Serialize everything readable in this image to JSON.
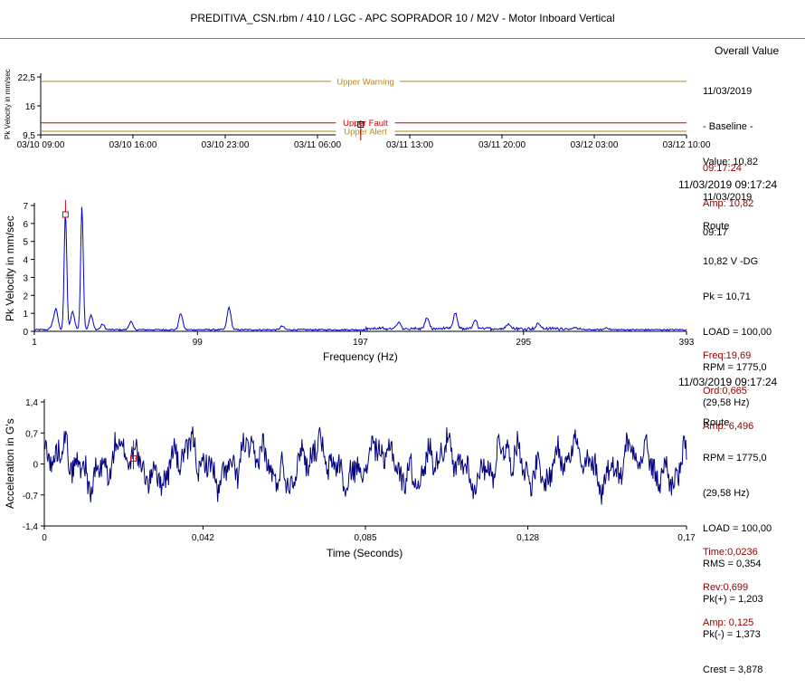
{
  "title": "PREDITIVA_CSN.rbm / 410 / LGC - APC SOPRADOR 10 / M2V - Motor Inboard Vertical",
  "trend": {
    "header": "Overall Value",
    "info": [
      "11/03/2019",
      "- Baseline -",
      "Value: 10,82",
      "11/03/2019",
      "09:17"
    ],
    "cursor": [
      "09:17:24",
      "Amp: 10,82"
    ],
    "ylabel": "Pk Velocity in mm/sec"
  },
  "spectrum": {
    "header": "11/03/2019 09:17:24",
    "info": [
      "Route",
      "10,82 V -DG",
      "Pk = 10,71",
      "LOAD = 100,00",
      "RPM = 1775,0",
      "(29,58 Hz)"
    ],
    "cursor": [
      "Freq:19,69",
      "Ord:0,665",
      "Amp: 6,496"
    ],
    "ylabel": "Pk Velocity in mm/sec",
    "xlabel": "Frequency (Hz)"
  },
  "waveform": {
    "header": "11/03/2019 09:17:24",
    "info": [
      "Route",
      "RPM = 1775,0",
      "(29,58 Hz)",
      "LOAD = 100,00",
      "RMS = 0,354",
      "Pk(+) = 1,203",
      "Pk(-) = 1,373",
      "Crest = 3,878"
    ],
    "cursor": [
      "Time:0,0236",
      "Rev:0,699",
      "Amp: 0,125"
    ],
    "ylabel": "Acceleration in G's",
    "xlabel": "Time (Seconds)"
  },
  "chart_data": [
    {
      "type": "line",
      "name": "trend",
      "xticks": [
        "03/10 09:00",
        "03/10 16:00",
        "03/10 23:00",
        "03/11 06:00",
        "03/11 13:00",
        "03/11 20:00",
        "03/12 03:00",
        "03/12 10:00"
      ],
      "yticks": [
        "22,5",
        "16",
        "9,5"
      ],
      "ylim": [
        9.5,
        22.5
      ],
      "xlim": [
        "03/10 09:00",
        "03/12 10:00"
      ],
      "thresholds": [
        {
          "label": "Upper Warning",
          "value": 21.5,
          "color": "#b8860b"
        },
        {
          "label": "Upper Fault",
          "value": 12.2,
          "color": "#cc0000"
        },
        {
          "label": "Upper Alert",
          "value": 10.3,
          "color": "#b8860b"
        }
      ],
      "points": [
        {
          "x": "03/11 09:17",
          "y": 10.82
        }
      ],
      "cursor_x": "03/11 09:17"
    },
    {
      "type": "line",
      "name": "spectrum",
      "xticks": [
        "1",
        "99",
        "197",
        "295",
        "393"
      ],
      "yticks": [
        "7",
        "6",
        "5",
        "4",
        "3",
        "2",
        "1",
        "0"
      ],
      "xlim": [
        1,
        393
      ],
      "ylim": [
        0,
        7
      ],
      "color": "#0000cc",
      "peaks": [
        {
          "x": 12,
          "y": 0.25
        },
        {
          "x": 14,
          "y": 1.1
        },
        {
          "x": 19.7,
          "y": 6.5
        },
        {
          "x": 24,
          "y": 1.0
        },
        {
          "x": 29.6,
          "y": 6.85
        },
        {
          "x": 35,
          "y": 0.8
        },
        {
          "x": 42,
          "y": 0.3
        },
        {
          "x": 59,
          "y": 0.45
        },
        {
          "x": 89,
          "y": 0.9
        },
        {
          "x": 118,
          "y": 1.25
        },
        {
          "x": 150,
          "y": 0.2
        },
        {
          "x": 220,
          "y": 0.35
        },
        {
          "x": 237,
          "y": 0.6
        },
        {
          "x": 254,
          "y": 0.85
        },
        {
          "x": 266,
          "y": 0.45
        },
        {
          "x": 286,
          "y": 0.3
        },
        {
          "x": 304,
          "y": 0.3
        },
        {
          "x": 345,
          "y": 0.12
        }
      ],
      "cursor": {
        "x": 19.69,
        "y": 6.496
      }
    },
    {
      "type": "line",
      "name": "waveform",
      "xticks": [
        "0",
        "0,042",
        "0,085",
        "0,128",
        "0,17"
      ],
      "yticks": [
        "1,4",
        "0,7",
        "0",
        "-0,7",
        "-1,4"
      ],
      "xlim": [
        0,
        0.17
      ],
      "ylim": [
        -1.4,
        1.4
      ],
      "color": "#000080",
      "rms": 0.354,
      "pk_pos": 1.203,
      "pk_neg": -1.373,
      "cursor": {
        "x": 0.0236,
        "y": 0.125
      }
    }
  ]
}
